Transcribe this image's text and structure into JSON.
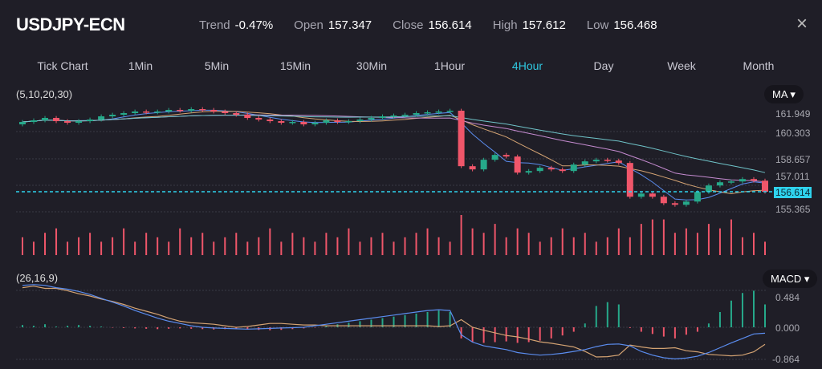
{
  "header": {
    "symbol": "USDJPY-ECN",
    "stats": [
      {
        "k": "Trend",
        "v": "-0.47%"
      },
      {
        "k": "Open",
        "v": "157.347"
      },
      {
        "k": "Close",
        "v": "156.614"
      },
      {
        "k": "High",
        "v": "157.612"
      },
      {
        "k": "Low",
        "v": "156.468"
      }
    ],
    "close_icon": "×"
  },
  "tabs": [
    "Tick Chart",
    "1Min",
    "5Min",
    "15Min",
    "30Min",
    "1Hour",
    "4Hour",
    "Day",
    "Week",
    "Month"
  ],
  "active_tab": "4Hour",
  "main": {
    "params": "(5,10,20,30)",
    "indicator": "MA ▾",
    "axis": [
      "161.949",
      "160.303",
      "158.657",
      "157.011",
      "155.365"
    ],
    "current_price": "156.614"
  },
  "macd": {
    "params": "(26,16,9)",
    "indicator": "MACD ▾",
    "axis": [
      "0.484",
      "0.000",
      "-0.864"
    ]
  },
  "colors": {
    "up": "#26a98a",
    "down": "#f0566a",
    "ma5": "#5b8def",
    "ma10": "#d4a373",
    "ma20": "#c58bd0",
    "ma30": "#6fc3c8",
    "accent": "#2fd3ee"
  },
  "chart_data": {
    "type": "candlestick",
    "price_range": [
      155.0,
      162.4
    ],
    "first_open": 160.8,
    "close": [
      160.95,
      161.05,
      161.2,
      161.0,
      160.9,
      161.0,
      161.1,
      161.3,
      161.4,
      161.5,
      161.6,
      161.55,
      161.6,
      161.7,
      161.65,
      161.75,
      161.7,
      161.6,
      161.5,
      161.4,
      161.2,
      161.1,
      161.0,
      160.9,
      160.95,
      160.8,
      160.9,
      161.05,
      160.95,
      161.0,
      161.1,
      161.2,
      161.3,
      161.35,
      161.4,
      161.5,
      161.55,
      161.6,
      161.65,
      158.2,
      158.0,
      158.6,
      158.9,
      158.8,
      157.8,
      157.9,
      158.1,
      158.0,
      157.9,
      158.3,
      158.5,
      158.6,
      158.55,
      158.4,
      156.3,
      156.5,
      156.3,
      155.9,
      155.8,
      156.0,
      156.6,
      157.0,
      157.2,
      157.25,
      157.4,
      157.3,
      156.614
    ],
    "volume": [
      4,
      3,
      5,
      6,
      3,
      4,
      5,
      3,
      4,
      6,
      3,
      5,
      4,
      3,
      6,
      4,
      5,
      3,
      4,
      5,
      3,
      4,
      6,
      3,
      5,
      4,
      3,
      5,
      4,
      6,
      3,
      4,
      5,
      3,
      4,
      5,
      6,
      4,
      3,
      9,
      6,
      5,
      7,
      4,
      6,
      5,
      3,
      4,
      6,
      4,
      5,
      3,
      4,
      6,
      4,
      7,
      8,
      8,
      5,
      6,
      5,
      7,
      6,
      8,
      4,
      5,
      3
    ],
    "ma_periods": [
      5,
      10,
      20,
      30
    ],
    "macd_hist": [
      0.03,
      0.02,
      0.04,
      0.01,
      0.02,
      0.03,
      0.02,
      0.01,
      -0.01,
      -0.02,
      -0.03,
      -0.04,
      -0.05,
      -0.04,
      -0.03,
      -0.04,
      -0.05,
      -0.06,
      -0.05,
      -0.04,
      -0.06,
      -0.07,
      -0.08,
      -0.07,
      -0.05,
      -0.03,
      -0.01,
      0.02,
      0.04,
      0.06,
      0.08,
      0.1,
      0.12,
      0.14,
      0.16,
      0.18,
      0.2,
      0.22,
      0.2,
      -0.3,
      -0.4,
      -0.42,
      -0.4,
      -0.38,
      -0.42,
      -0.4,
      -0.36,
      -0.3,
      -0.22,
      -0.12,
      0.05,
      0.28,
      0.33,
      0.3,
      -0.02,
      -0.12,
      -0.18,
      -0.25,
      -0.3,
      -0.2,
      -0.12,
      0.05,
      0.2,
      0.35,
      0.45,
      0.48,
      0.3
    ],
    "macd_line": [
      0.55,
      0.56,
      0.55,
      0.52,
      0.5,
      0.47,
      0.43,
      0.38,
      0.33,
      0.28,
      0.22,
      0.17,
      0.12,
      0.08,
      0.05,
      0.02,
      0.0,
      -0.02,
      -0.03,
      -0.04,
      -0.05,
      -0.04,
      -0.03,
      -0.02,
      -0.01,
      0.0,
      0.02,
      0.04,
      0.06,
      0.08,
      0.1,
      0.12,
      0.14,
      0.16,
      0.18,
      0.2,
      0.22,
      0.23,
      0.22,
      -0.2,
      -0.4,
      -0.5,
      -0.55,
      -0.6,
      -0.68,
      -0.72,
      -0.75,
      -0.73,
      -0.7,
      -0.65,
      -0.6,
      -0.52,
      -0.46,
      -0.45,
      -0.5,
      -0.65,
      -0.75,
      -0.82,
      -0.85,
      -0.83,
      -0.78,
      -0.68,
      -0.55,
      -0.42,
      -0.3,
      -0.18,
      -0.16
    ],
    "macd_range": [
      -0.9,
      0.6
    ]
  }
}
